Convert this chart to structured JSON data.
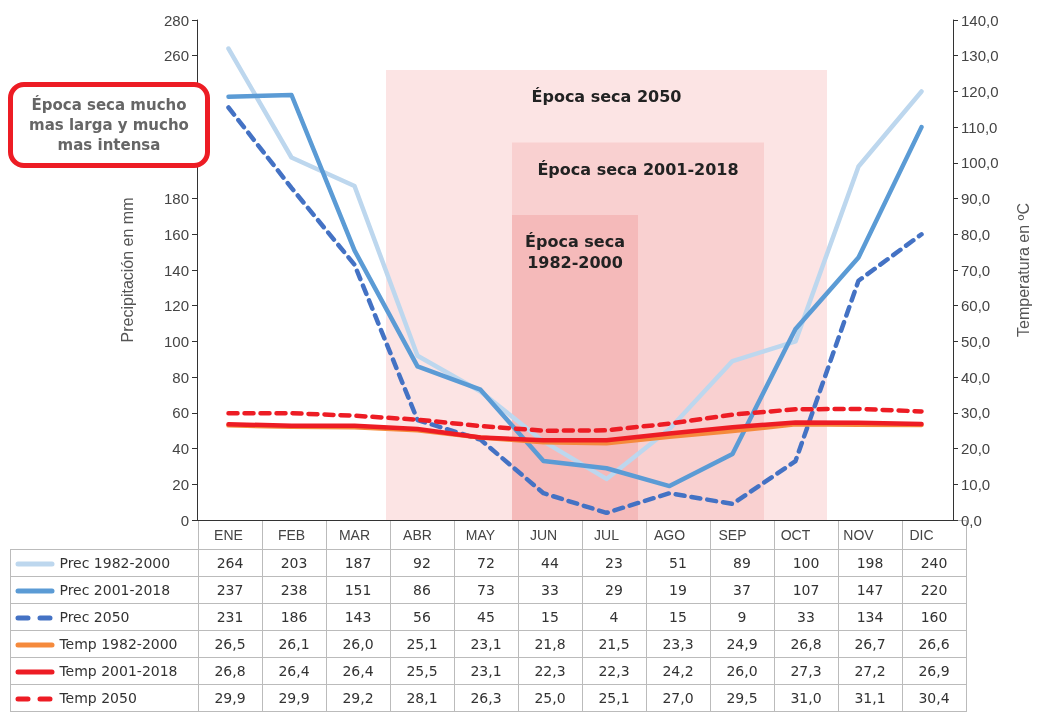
{
  "chart_data": {
    "type": "line",
    "ylabel": "Precipitación en mm",
    "y2label": "Temperatura en ºC",
    "categories": [
      "ENE",
      "FEB",
      "MAR",
      "ABR",
      "MAY",
      "JUN",
      "JUL",
      "AGO",
      "SEP",
      "OCT",
      "NOV",
      "DIC"
    ],
    "ylim": [
      0,
      280
    ],
    "yticks": [
      0,
      20,
      40,
      60,
      80,
      100,
      120,
      140,
      160,
      180,
      260,
      280
    ],
    "y2lim": [
      0,
      140
    ],
    "y2ticks": [
      {
        "value": 0,
        "label": "0,0"
      },
      {
        "value": 10,
        "label": "10,0"
      },
      {
        "value": 20,
        "label": "20,0"
      },
      {
        "value": 30,
        "label": "30,0"
      },
      {
        "value": 40,
        "label": "40,0"
      },
      {
        "value": 50,
        "label": "50,0"
      },
      {
        "value": 60,
        "label": "60,0"
      },
      {
        "value": 70,
        "label": "70,0"
      },
      {
        "value": 80,
        "label": "80,0"
      },
      {
        "value": 90,
        "label": "90,0"
      },
      {
        "value": 100,
        "label": "100,0"
      },
      {
        "value": 110,
        "label": "110,0"
      },
      {
        "value": 120,
        "label": "120,0"
      },
      {
        "value": 130,
        "label": "130,0"
      },
      {
        "value": 140,
        "label": "140,0"
      }
    ],
    "grid": false,
    "legend": "bottom left",
    "marker": "none",
    "series": [
      {
        "name": "Prec 1982-2000",
        "color": "#bdd7ee",
        "line_style": "solid",
        "values": [
          264,
          203,
          187,
          92,
          72,
          44,
          23,
          51,
          89,
          100,
          198,
          240
        ],
        "value_labels": [
          "264",
          "203",
          "187",
          "92",
          "72",
          "44",
          "23",
          "51",
          "89",
          "100",
          "198",
          "240"
        ]
      },
      {
        "name": "Prec 2001-2018",
        "color": "#5b9bd5",
        "line_style": "solid",
        "values": [
          237,
          238,
          151,
          86,
          73,
          33,
          29,
          19,
          37,
          107,
          147,
          220
        ],
        "value_labels": [
          "237",
          "238",
          "151",
          "86",
          "73",
          "33",
          "29",
          "19",
          "37",
          "107",
          "147",
          "220"
        ]
      },
      {
        "name": "Prec 2050",
        "color": "#4472c4",
        "line_style": "dashed",
        "values": [
          231,
          186,
          143,
          56,
          45,
          15,
          4,
          15,
          9,
          33,
          134,
          160
        ],
        "value_labels": [
          "231",
          "186",
          "143",
          "56",
          "45",
          "15",
          "4",
          "15",
          "9",
          "33",
          "134",
          "160"
        ]
      },
      {
        "name": "Temp 1982-2000",
        "color": "#f58a3c",
        "line_style": "solid",
        "axis": "y2",
        "values": [
          26.5,
          26.1,
          26.0,
          25.1,
          23.1,
          21.8,
          21.5,
          23.3,
          24.9,
          26.8,
          26.7,
          26.6
        ],
        "value_labels": [
          "26,5",
          "26,1",
          "26,0",
          "25,1",
          "23,1",
          "21,8",
          "21,5",
          "23,3",
          "24,9",
          "26,8",
          "26,7",
          "26,6"
        ]
      },
      {
        "name": "Temp 2001-2018",
        "color": "#ed1c24",
        "line_style": "solid",
        "axis": "y2",
        "values": [
          26.8,
          26.4,
          26.4,
          25.5,
          23.1,
          22.3,
          22.3,
          24.2,
          26.0,
          27.3,
          27.2,
          26.9
        ],
        "value_labels": [
          "26,8",
          "26,4",
          "26,4",
          "25,5",
          "23,1",
          "22,3",
          "22,3",
          "24,2",
          "26,0",
          "27,3",
          "27,2",
          "26,9"
        ]
      },
      {
        "name": "Temp 2050",
        "color": "#ed1c24",
        "line_style": "dashed",
        "axis": "y2",
        "values": [
          29.9,
          29.9,
          29.2,
          28.1,
          26.3,
          25.0,
          25.1,
          27.0,
          29.5,
          31.0,
          31.1,
          30.4
        ],
        "value_labels": [
          "29,9",
          "29,9",
          "29,2",
          "28,1",
          "26,3",
          "25,0",
          "25,1",
          "27,0",
          "29,5",
          "31,0",
          "31,1",
          "30,4"
        ]
      }
    ],
    "bands": [
      {
        "axis": "x",
        "from": "ABR",
        "to": "OCT",
        "label": "Época seca 2050",
        "color": "#fce4e4"
      },
      {
        "axis": "x",
        "from": "JUN",
        "to": "SEP",
        "label": "Época seca 2001-2018",
        "color": "#f9d0d0"
      },
      {
        "axis": "x",
        "from": "JUN",
        "to": "JUL",
        "label": "Época seca\n1982-2000",
        "color": "#f5baba"
      }
    ],
    "annotations": [
      "Época seca mucho mas larga y mucho mas intensa"
    ]
  }
}
